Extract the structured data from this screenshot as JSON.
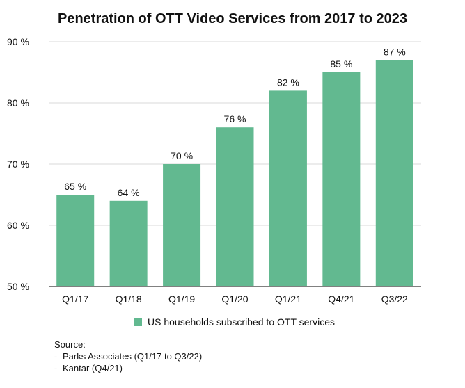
{
  "chart_data": {
    "type": "bar",
    "title": "Penetration of OTT Video Services from 2017 to 2023",
    "categories": [
      "Q1/17",
      "Q1/18",
      "Q1/19",
      "Q1/20",
      "Q1/21",
      "Q4/21",
      "Q3/22"
    ],
    "series": [
      {
        "name": "US households subscribed to OTT services",
        "values": [
          65,
          64,
          70,
          76,
          82,
          85,
          87
        ],
        "labels": [
          "65 %",
          "64 %",
          "70 %",
          "76 %",
          "82 %",
          "85 %",
          "87 %"
        ]
      }
    ],
    "ylim": [
      50,
      90
    ],
    "yticks": [
      50,
      60,
      70,
      80,
      90
    ],
    "ytick_labels": [
      "50 %",
      "60 %",
      "70 %",
      "80 %",
      "90 %"
    ],
    "grid": true,
    "legend_position": "bottom",
    "bar_color": "#62b990",
    "grid_color": "#d9d9d9"
  },
  "source": {
    "heading": "Source:",
    "items": [
      {
        "dash": "-",
        "text": "Parks Associates (Q1/17 to Q3/22)"
      },
      {
        "dash": "-",
        "text": "Kantar (Q4/21)"
      }
    ]
  }
}
